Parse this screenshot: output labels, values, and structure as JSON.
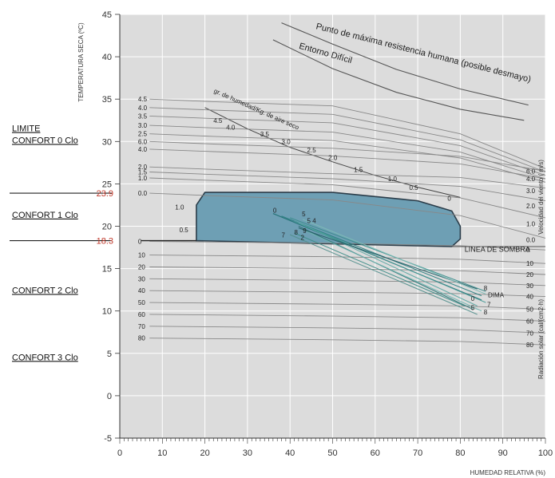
{
  "chart_data": {
    "type": "line",
    "xlabel": "HUMEDAD RELATIVA (%)",
    "ylabel": "TEMPERATURA SECA (ºC)",
    "right_label_wind": "Velocidad del viento ( m/s)",
    "right_label_radiation": "Radiación solar (cal/(cm2·h)",
    "xlim": [
      0,
      100
    ],
    "ylim": [
      -5,
      45
    ],
    "x_ticks": [
      "0",
      "10",
      "20",
      "30",
      "40",
      "50",
      "60",
      "70",
      "80",
      "90",
      "100"
    ],
    "y_ticks": [
      "-5",
      "0",
      "5",
      "10",
      "15",
      "20",
      "25",
      "30",
      "35",
      "40",
      "45"
    ],
    "grid": true,
    "comfort_zone": {
      "polygon": [
        [
          18,
          18.3
        ],
        [
          18,
          22.5
        ],
        [
          20,
          24
        ],
        [
          50,
          24
        ],
        [
          70,
          23
        ],
        [
          78,
          21.8
        ],
        [
          80,
          20
        ],
        [
          80,
          18.5
        ],
        [
          78,
          17.6
        ],
        [
          18,
          18.3
        ]
      ],
      "color": "#6e9fb4"
    },
    "shade_line_label": "LINEA DE SOMBRA",
    "side_labels": [
      {
        "text": "LIMITE",
        "y": 31.2
      },
      {
        "text": "CONFORT 0 Clo",
        "y": 29.8
      },
      {
        "text": "CONFORT 1 Clo",
        "y": 21.0
      },
      {
        "text": "CONFORT 2 Clo",
        "y": 12.1
      },
      {
        "text": "CONFORT 3 Clo",
        "y": 4.2
      }
    ],
    "limit_values": [
      {
        "text": "23.9",
        "y": 23.9
      },
      {
        "text": "18.3",
        "y": 18.3
      }
    ],
    "top_curves": [
      {
        "name": "Punto de máxima resistencia humana (posible desmayo)",
        "points": [
          [
            38,
            44
          ],
          [
            50,
            41.5
          ],
          [
            65,
            38.5
          ],
          [
            80,
            36.2
          ],
          [
            96,
            34.3
          ]
        ]
      },
      {
        "name": "Entorno Difícil",
        "points": [
          [
            36,
            42
          ],
          [
            50,
            38.6
          ],
          [
            65,
            35.8
          ],
          [
            80,
            33.8
          ],
          [
            95,
            32.5
          ]
        ]
      }
    ],
    "humidity_line_label": "gr. de humedad/Kg. de aire seco",
    "humidity_curve": [
      [
        20,
        34
      ],
      [
        30,
        31.5
      ],
      [
        40,
        29.3
      ],
      [
        50,
        27.6
      ],
      [
        60,
        26
      ],
      [
        70,
        24.6
      ],
      [
        80,
        23.4
      ]
    ],
    "humidity_labels": [
      {
        "text": "4.5",
        "x": 22,
        "y": 32.2
      },
      {
        "text": "4.0",
        "x": 25,
        "y": 31.4
      },
      {
        "text": "3.5",
        "x": 33,
        "y": 30.6
      },
      {
        "text": "3.0",
        "x": 38,
        "y": 29.7
      },
      {
        "text": "2.5",
        "x": 44,
        "y": 28.7
      },
      {
        "text": "2.0",
        "x": 49,
        "y": 27.8
      },
      {
        "text": "1.5",
        "x": 55,
        "y": 26.4
      },
      {
        "text": "1.0",
        "x": 63,
        "y": 25.3
      },
      {
        "text": "0.5",
        "x": 68,
        "y": 24.3
      },
      {
        "text": "0",
        "x": 77,
        "y": 23.0
      }
    ],
    "wind_left_labels": [
      "4.5",
      "4.0",
      "3.5",
      "3.0",
      "2.5",
      "6.0",
      "4.0",
      "2.0",
      "1.5",
      "1.0",
      "0.0"
    ],
    "wind_left_y": [
      35.0,
      34.0,
      33.0,
      31.9,
      30.9,
      30.0,
      29.1,
      27.0,
      26.4,
      25.7,
      23.9
    ],
    "wind_curves_end_y": [
      26.8,
      26.4,
      26.0,
      25.6,
      25.2,
      26.5,
      25.6,
      24.5,
      23.0,
      21.0,
      18.6
    ],
    "wind_right_labels": [
      "6.0",
      "4.0",
      "3.0",
      "2.0",
      "1.0",
      "0.0"
    ],
    "wind_right_y": [
      26.5,
      25.6,
      24.2,
      22.4,
      20.3,
      18.4
    ],
    "wind_zone_labels": [
      {
        "text": "1.0",
        "x": 13,
        "y": 22.0
      },
      {
        "text": "0.5",
        "x": 14,
        "y": 19.3
      }
    ],
    "radiation_left_labels": [
      "0",
      "10",
      "20",
      "30",
      "40",
      "50",
      "60",
      "70",
      "80"
    ],
    "radiation_left_y": [
      18.2,
      16.6,
      15.2,
      13.8,
      12.4,
      11.0,
      9.6,
      8.2,
      6.8
    ],
    "radiation_right_labels": [
      "0",
      "10",
      "20",
      "30",
      "40",
      "50",
      "60",
      "70",
      "80"
    ],
    "radiation_right_y": [
      17.2,
      15.6,
      14.3,
      13.0,
      11.7,
      10.2,
      8.8,
      7.4,
      6.0
    ],
    "sun_lines": [
      {
        "from": [
          36,
          21.5
        ],
        "to": [
          85,
          11.3
        ]
      },
      {
        "from": [
          38,
          21.2
        ],
        "to": [
          85,
          11.8
        ]
      },
      {
        "from": [
          40,
          21.0
        ],
        "to": [
          86,
          12.3
        ]
      },
      {
        "from": [
          41,
          20.6
        ],
        "to": [
          86,
          11.0
        ]
      },
      {
        "from": [
          42,
          20.4
        ],
        "to": [
          84,
          10.6
        ]
      },
      {
        "from": [
          42,
          20.0
        ],
        "to": [
          83,
          10.2
        ]
      },
      {
        "from": [
          43,
          19.6
        ],
        "to": [
          85,
          10.0
        ]
      },
      {
        "from": [
          41,
          19.2
        ],
        "to": [
          81,
          10.6
        ]
      },
      {
        "from": [
          40,
          19.0
        ],
        "to": [
          84,
          9.6
        ]
      },
      {
        "from": [
          42,
          19.8
        ],
        "to": [
          84,
          12.6
        ]
      },
      {
        "from": [
          43,
          20.8
        ],
        "to": [
          86,
          12.0
        ]
      }
    ],
    "sun_point_labels": [
      {
        "text": "0",
        "x": 36,
        "y": 21.6
      },
      {
        "text": "5",
        "x": 42.8,
        "y": 21.2
      },
      {
        "text": "5 4",
        "x": 44,
        "y": 20.4
      },
      {
        "text": "9",
        "x": 43,
        "y": 19.2
      },
      {
        "text": "8",
        "x": 41,
        "y": 19.0
      },
      {
        "text": "7",
        "x": 38,
        "y": 18.7
      },
      {
        "text": "2",
        "x": 42.5,
        "y": 18.4
      },
      {
        "text": "8",
        "x": 85.5,
        "y": 12.4
      },
      {
        "text": "0",
        "x": 82.5,
        "y": 11.2
      },
      {
        "text": "DIMA",
        "x": 86.5,
        "y": 11.6
      },
      {
        "text": "5",
        "x": 82.5,
        "y": 10.1
      },
      {
        "text": "7",
        "x": 86.3,
        "y": 10.5
      },
      {
        "text": "8",
        "x": 85.5,
        "y": 9.6
      }
    ]
  }
}
